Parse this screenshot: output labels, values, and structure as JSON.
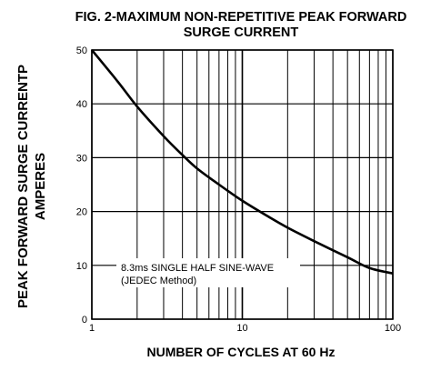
{
  "chart_data": {
    "type": "line",
    "title": "FIG. 2-MAXIMUM NON-REPETITIVE PEAK FORWARD",
    "subtitle": "SURGE CURRENT",
    "ylabel_line1": "PEAK  FORWARD SURGE CURRENTP",
    "ylabel_line2": "AMPERES",
    "xlabel": "NUMBER OF CYCLES AT 60 Hz",
    "x_scale": "log",
    "xlim": [
      1,
      100
    ],
    "ylim": [
      0,
      50
    ],
    "grid": true,
    "x_ticks": [
      {
        "value": 1,
        "label": "1"
      },
      {
        "value": 10,
        "label": "10"
      },
      {
        "value": 100,
        "label": "100"
      }
    ],
    "y_ticks": [
      {
        "value": 0,
        "label": "0"
      },
      {
        "value": 10,
        "label": "10"
      },
      {
        "value": 20,
        "label": "20"
      },
      {
        "value": 30,
        "label": "30"
      },
      {
        "value": 40,
        "label": "40"
      },
      {
        "value": 50,
        "label": "50"
      }
    ],
    "annotation_line1": "8.3ms SINGLE HALF SINE-WAVE",
    "annotation_line2": "(JEDEC Method)",
    "series": [
      {
        "x": [
          1,
          1.5,
          2,
          3,
          4,
          5,
          7,
          10,
          15,
          20,
          30,
          50,
          70,
          100
        ],
        "values": [
          50,
          44,
          39.5,
          34,
          30.5,
          28,
          25,
          22,
          19,
          17,
          14.5,
          11.5,
          9.5,
          8.5
        ]
      }
    ]
  }
}
